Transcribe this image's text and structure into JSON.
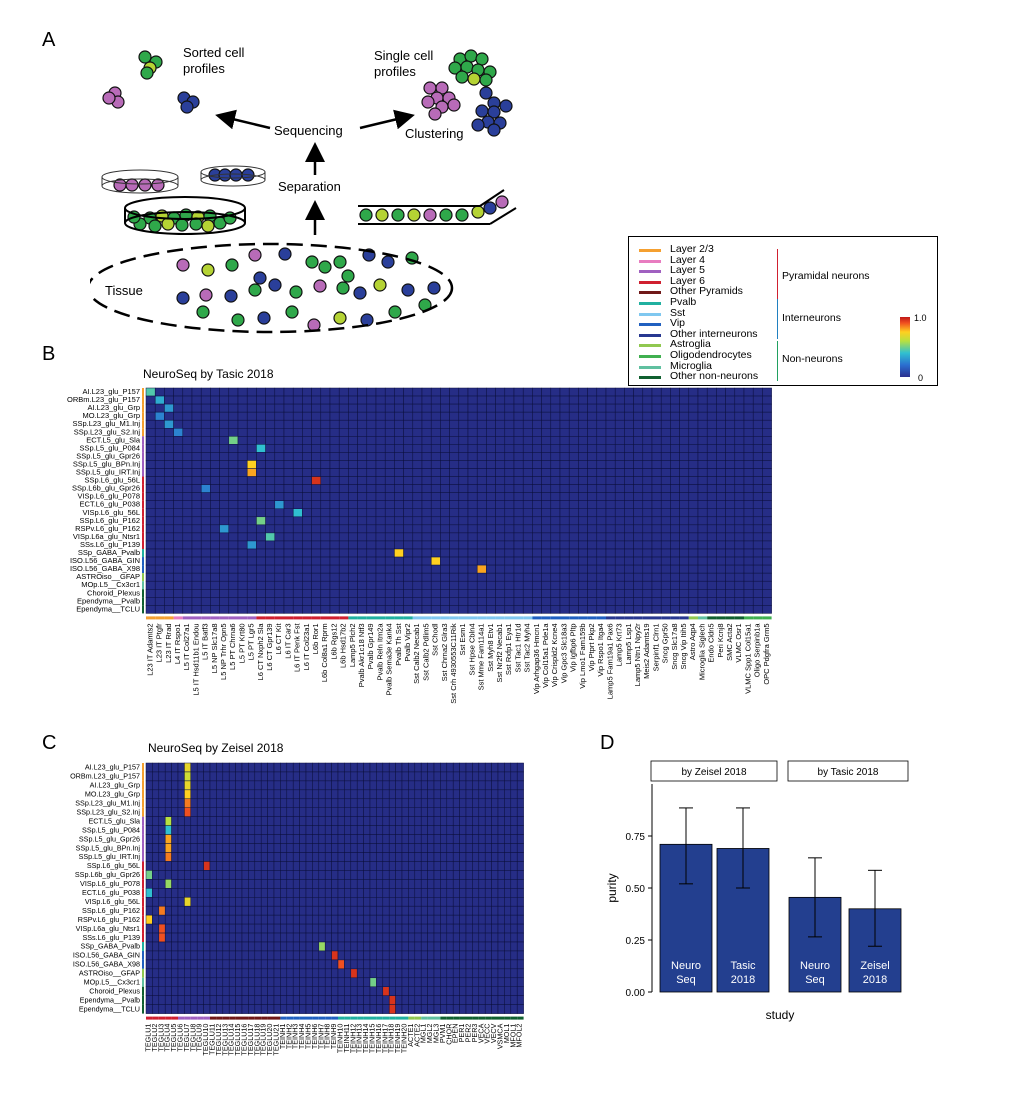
{
  "panel_labels": {
    "a": "A",
    "b": "B",
    "c": "C",
    "d": "D"
  },
  "panel_a": {
    "sorted": "Sorted cell\nprofiles",
    "single": "Single cell\nprofiles",
    "sequencing": "Sequencing",
    "clustering": "Clustering",
    "separation": "Separation",
    "tissue": "Tissue"
  },
  "legend": {
    "items": [
      {
        "label": "Layer 2/3",
        "color": "#f5a030"
      },
      {
        "label": "Layer 4",
        "color": "#e87cc0"
      },
      {
        "label": "Layer 5",
        "color": "#a060c0"
      },
      {
        "label": "Layer 6",
        "color": "#d02030"
      },
      {
        "label": "Other Pyramids",
        "color": "#701818"
      },
      {
        "label": "Pvalb",
        "color": "#20b0a0"
      },
      {
        "label": "Sst",
        "color": "#80c8f0"
      },
      {
        "label": "Vip",
        "color": "#2060c0"
      },
      {
        "label": "Other interneurons",
        "color": "#283890"
      },
      {
        "label": "Astroglia",
        "color": "#90c850"
      },
      {
        "label": "Oligodendrocytes",
        "color": "#40b050"
      },
      {
        "label": "Microglia",
        "color": "#60c0a0"
      },
      {
        "label": "Other non-neurons",
        "color": "#106030"
      }
    ],
    "groups": [
      {
        "label": "Pyramidal neurons",
        "color": "#d02030"
      },
      {
        "label": "Interneurons",
        "color": "#2080c0"
      },
      {
        "label": "Non-neurons",
        "color": "#20a060"
      }
    ],
    "scale_max": "1.0",
    "scale_min": "0"
  },
  "panel_b": {
    "title": "NeuroSeq by Tasic 2018",
    "rows": [
      "AI.L23_glu_P157",
      "ORBm.L23_glu_P157",
      "AI.L23_glu_Grp",
      "MO.L23_glu_Grp",
      "SSp.L23_glu_M1.Inj",
      "SSp.L23_glu_S2.Inj",
      "ECT.L5_glu_Sla",
      "SSp.L5_glu_P084",
      "SSp.L5_glu_Gpr26",
      "SSp.L5_glu_BPn.Inj",
      "SSp.L5_glu_IRT.Inj",
      "SSp.L6_glu_56L",
      "SSp.L6b_glu_Gpr26",
      "VISp.L6_glu_P078",
      "ECT.L6_glu_P038",
      "VISp.L6_glu_56L",
      "SSp.L6_glu_P162",
      "RSPv.L6_glu_P162",
      "VISp.L6a_glu_Ntsr1",
      "SSs.L6_glu_P139",
      "SSp_GABA_Pvalb",
      "ISO.L56_GABA_GIN",
      "ISO.L56_GABA_X98",
      "ASTROiso__GFAP",
      "MOp.L5__Cx3cr1",
      "Choroid_Plexus",
      "Ependyma__Pvalb",
      "Ependyma__TCLU"
    ],
    "cols": [
      "L23 IT Adamts2",
      "L23 IT Ptgfr",
      "L23 IT Rrad",
      "L4 IT Rspo1",
      "L5 IT Col27a1",
      "L5 IT Hsd11b1 Endou",
      "L5 IT Batf3",
      "L5 NP Slc17a8",
      "L5 NP Trhr Opn5",
      "L5 PT Chrna6",
      "L5 PT Krt80",
      "L5 PT Lgr5",
      "L6 CT Nxph2 Sla",
      "L6 CT Gpr139",
      "L6 CT Kit",
      "L6 IT Car3",
      "L6 IT Penk Fst",
      "L6 IT Col23a1",
      "L6b Ror1",
      "L6b Col8a1 Rprm",
      "L6b Rgs12",
      "L6b Hsd17b2",
      "Lamp5 Plch2",
      "Pvalb Akr1c18 Ntf3",
      "Pvalb Gpr149",
      "Pvalb Reln Itm2a",
      "Pvalb Sema3e Kank4",
      "Pvalb Th Sst",
      "Pvalb Vipr2",
      "Sst Calb2 Necab1",
      "Sst Calb2 Pdlim5",
      "Sst Chodl",
      "Sst Chrna2 Glra3",
      "Sst Crh 4930553C11Rik",
      "Sst Esm1",
      "Sst Hpse Cbln4",
      "Sst Mme Fam114a1",
      "Sst Myh8 Etv1",
      "Sst Nr2f2 Necab1",
      "Sst Rxfp1 Eya1",
      "Sst Tac1 Htr1d",
      "Sst Tac2 Myh4",
      "Vip Arhgap36 Hmcn1",
      "Vip Col15a1 Pde1a",
      "Vip Crispld2 Kcne4",
      "Vip Gpc3 Slc18a3",
      "Vip Igfbp6 Pltp",
      "Vip Lmo1 Fam159b",
      "Vip Ptprt Pkp2",
      "Vip Rspo1 Itga4",
      "Lamp5 Fam19a1 Pax6",
      "Lamp5 Krt73",
      "Lamp5 Lsp1",
      "Lamp5 Ntn1 Npy2r",
      "Meis2 Adamts19",
      "Serpinf1 Clrn1",
      "Sncg Gpr50",
      "Sncg Slc17a8",
      "Sncg Vip Itih5",
      "Astro Aqp4",
      "Microglia Siglech",
      "Endo Cldn5",
      "Peri Kcnj8",
      "SMC Acta2",
      "VLMC Osr1",
      "VLMC Spp1 Col15a1",
      "Oligo Serpinb1a",
      "OPC Pdgfra Grm5"
    ]
  },
  "panel_c": {
    "title": "NeuroSeq by Zeisel 2018",
    "rows": [
      "AI.L23_glu_P157",
      "ORBm.L23_glu_P157",
      "AI.L23_glu_Grp",
      "MO.L23_glu_Grp",
      "SSp.L23_glu_M1.Inj",
      "SSp.L23_glu_S2.Inj",
      "ECT.L5_glu_Sla",
      "SSp.L5_glu_P084",
      "SSp.L5_glu_Gpr26",
      "SSp.L5_glu_BPn.Inj",
      "SSp.L5_glu_IRT.Inj",
      "SSp.L6_glu_56L",
      "SSp.L6b_glu_Gpr26",
      "VISp.L6_glu_P078",
      "ECT.L6_glu_P038",
      "VISp.L6_glu_56L",
      "SSp.L6_glu_P162",
      "RSPv.L6_glu_P162",
      "VISp.L6a_glu_Ntsr1",
      "SSs.L6_glu_P139",
      "SSp_GABA_Pvalb",
      "ISO.L56_GABA_GIN",
      "ISO.L56_GABA_X98",
      "ASTROiso__GFAP",
      "MOp.L5__Cx3cr1",
      "Choroid_Plexus",
      "Ependyma__Pvalb",
      "Ependyma__TCLU"
    ],
    "cols": [
      "TEGLU1",
      "TEGLU2",
      "TEGLU3",
      "TEGLU4",
      "TEGLU5",
      "TEGLU6",
      "TEGLU7",
      "TEGLU8",
      "TEGLU9",
      "TEGLU10",
      "TEGLU11",
      "TEGLU12",
      "TEGLU13",
      "TEGLU14",
      "TEGLU15",
      "TEGLU16",
      "TEGLU17",
      "TEGLU18",
      "TEGLU19",
      "TEGLU20",
      "TEGLU21",
      "TEINH1",
      "TEINH2",
      "TEINH3",
      "TEINH4",
      "TEINH5",
      "TEINH6",
      "TEINH7",
      "TEINH8",
      "TEINH9",
      "TEINH10",
      "TEINH11",
      "TEINH12",
      "TEINH13",
      "TEINH14",
      "TEINH15",
      "TEINH16",
      "TEINH17",
      "TEINH18",
      "TEINH19",
      "TEINH20",
      "ACTE1",
      "ACTE2",
      "MGL1",
      "MGL2",
      "MGL3",
      "PVM1",
      "CHOR",
      "EPEN",
      "PER1",
      "PER2",
      "PER3",
      "VECA",
      "VECC",
      "VECV",
      "VSMCA",
      "MOL1",
      "MFOL1",
      "MFOL2"
    ]
  },
  "chart_data": {
    "type": "bar",
    "categories": [
      "Neuro\nSeq",
      "Tasic\n2018",
      "Neuro\nSeq",
      "Zeisel\n2018"
    ],
    "facets": [
      "by Zeisel 2018",
      "by Tasic 2018"
    ],
    "series": [
      {
        "values": [
          0.71,
          0.69,
          0.455,
          0.4
        ],
        "error_low": [
          0.52,
          0.5,
          0.265,
          0.22
        ],
        "error_high": [
          0.885,
          0.885,
          0.645,
          0.585
        ]
      }
    ],
    "ylabel": "purity",
    "xlabel": "study",
    "ylim": [
      0,
      1.0
    ],
    "yticks": [
      "0.00",
      "0.25",
      "0.50",
      "0.75"
    ],
    "bar_color": "#233f8f"
  }
}
